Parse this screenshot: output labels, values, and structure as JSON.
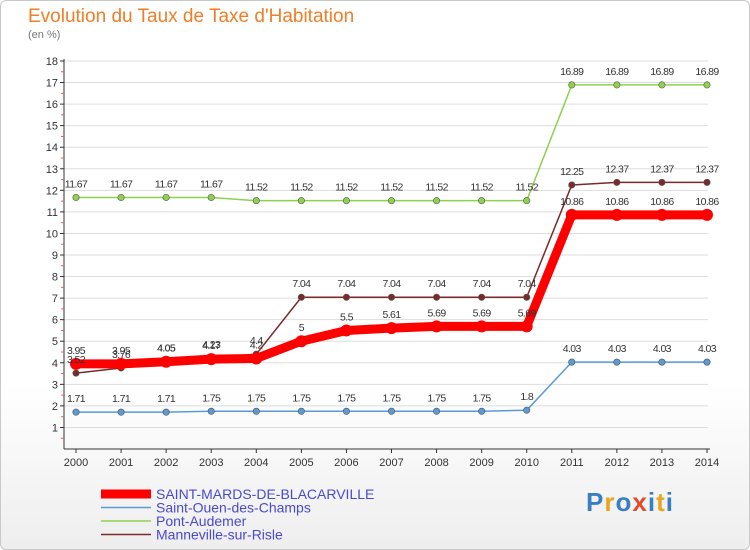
{
  "header": {
    "title": "Evolution du Taux de Taxe d'Habitation",
    "subtitle": "(en %)"
  },
  "logo": {
    "letters": [
      "P",
      "r",
      "o",
      "x",
      "i",
      "t",
      "i"
    ],
    "colors": [
      "#3a7fc1",
      "#e8a61e",
      "#3a7fc1",
      "#e04b2e",
      "#3a7fc1",
      "#e8a61e",
      "#3a7fc1"
    ]
  },
  "chart_data": {
    "type": "line",
    "title": "Evolution du Taux de Taxe d'Habitation",
    "ylabel": "(en %)",
    "xlabel": "",
    "ylim": [
      0,
      18
    ],
    "yticks": [
      1,
      2,
      3,
      4,
      5,
      6,
      7,
      8,
      9,
      10,
      11,
      12,
      13,
      14,
      15,
      16,
      17,
      18
    ],
    "x": [
      "2000",
      "2001",
      "2002",
      "2003",
      "2004",
      "2005",
      "2006",
      "2007",
      "2008",
      "2009",
      "2010",
      "2011",
      "2012",
      "2013",
      "2014"
    ],
    "series": [
      {
        "name": "SAINT-MARDS-DE-BLACARVILLE",
        "color": "#ff0000",
        "weight": "bold",
        "values": [
          3.95,
          3.95,
          4.05,
          4.17,
          4.2,
          5,
          5.5,
          5.61,
          5.69,
          5.69,
          5.69,
          10.86,
          10.86,
          10.86,
          10.86
        ],
        "labels": [
          "3.95",
          "3.95",
          "4.05",
          "4.17",
          "4.2",
          "5",
          "5.5",
          "5.61",
          "5.69",
          "5.69",
          "5.69",
          "10.86",
          "10.86",
          "10.86",
          "10.86"
        ]
      },
      {
        "name": "Saint-Ouen-des-Champs",
        "color": "#5a9bd5",
        "weight": "normal",
        "values": [
          1.71,
          1.71,
          1.71,
          1.75,
          1.75,
          1.75,
          1.75,
          1.75,
          1.75,
          1.75,
          1.8,
          4.03,
          4.03,
          4.03,
          4.03
        ],
        "labels": [
          "1.71",
          "1.71",
          "1.71",
          "1.75",
          "1.75",
          "1.75",
          "1.75",
          "1.75",
          "1.75",
          "1.75",
          "1.8",
          "4.03",
          "4.03",
          "4.03",
          "4.03"
        ]
      },
      {
        "name": "Pont-Audemer",
        "color": "#8fd14f",
        "weight": "normal",
        "values": [
          11.67,
          11.67,
          11.67,
          11.67,
          11.52,
          11.52,
          11.52,
          11.52,
          11.52,
          11.52,
          11.52,
          16.89,
          16.89,
          16.89,
          16.89
        ],
        "labels": [
          "11.67",
          "11.67",
          "11.67",
          "11.67",
          "11.52",
          "11.52",
          "11.52",
          "11.52",
          "11.52",
          "11.52",
          "11.52",
          "16.89",
          "16.89",
          "16.89",
          "16.89"
        ]
      },
      {
        "name": "Manneville-sur-Risle",
        "color": "#7a2a2a",
        "weight": "normal",
        "values": [
          3.52,
          3.76,
          4.05,
          4.23,
          4.4,
          7.04,
          7.04,
          7.04,
          7.04,
          7.04,
          7.04,
          12.25,
          12.37,
          12.37,
          12.37
        ],
        "labels": [
          "3.52",
          "3.76",
          "4.05",
          "4.23",
          "4.4",
          "7.04",
          "7.04",
          "7.04",
          "7.04",
          "7.04",
          "7.04",
          "12.25",
          "12.37",
          "12.37",
          "12.37"
        ]
      }
    ],
    "legend": "bottom-left"
  }
}
